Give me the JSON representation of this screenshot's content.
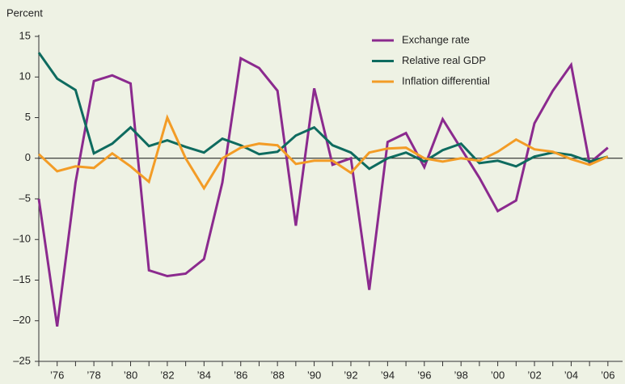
{
  "chart_data": {
    "type": "line",
    "y_label": "Percent",
    "x": [
      1975,
      1976,
      1977,
      1978,
      1979,
      1980,
      1981,
      1982,
      1983,
      1984,
      1985,
      1986,
      1987,
      1988,
      1989,
      1990,
      1991,
      1992,
      1993,
      1994,
      1995,
      1996,
      1997,
      1998,
      1999,
      2000,
      2001,
      2002,
      2003,
      2004,
      2005,
      2006
    ],
    "series": [
      {
        "name": "Exchange rate",
        "color": "#8b2a8e",
        "values": [
          -5,
          -20.7,
          -3,
          9.5,
          10.2,
          9.2,
          -13.8,
          -14.5,
          -14.2,
          -12.4,
          -3,
          12.3,
          11.1,
          8.3,
          -8.3,
          8.6,
          -0.8,
          0,
          -16.2,
          2,
          3.1,
          -1.1,
          4.8,
          1.2,
          -2.4,
          -6.5,
          -5.2,
          4.3,
          8.3,
          11.5,
          -0.6,
          1.3
        ]
      },
      {
        "name": "Relative real GDP",
        "color": "#0e6b5f",
        "values": [
          13,
          9.8,
          8.4,
          0.6,
          1.8,
          3.8,
          1.5,
          2.2,
          1.4,
          0.7,
          2.4,
          1.6,
          0.5,
          0.8,
          2.8,
          3.8,
          1.6,
          0.7,
          -1.3,
          0,
          0.7,
          -0.4,
          1,
          1.8,
          -0.6,
          -0.3,
          -1,
          0.2,
          0.7,
          0.4,
          -0.4,
          0.2
        ]
      },
      {
        "name": "Inflation differential",
        "color": "#f39c26",
        "values": [
          0.5,
          -1.6,
          -1,
          -1.2,
          0.6,
          -1,
          -2.9,
          5,
          0,
          -3.7,
          0,
          1.3,
          1.8,
          1.6,
          -0.7,
          -0.3,
          -0.3,
          -1.8,
          0.7,
          1.2,
          1.3,
          0,
          -0.4,
          0,
          -0.3,
          0.8,
          2.3,
          1.1,
          0.8,
          -0.1,
          -0.8,
          0.2
        ]
      }
    ],
    "xlim": [
      1975,
      2006.8
    ],
    "xticks": [
      {
        "value": 1976,
        "label": "’76"
      },
      {
        "value": 1978,
        "label": "’78"
      },
      {
        "value": 1980,
        "label": "’80"
      },
      {
        "value": 1982,
        "label": "’82"
      },
      {
        "value": 1984,
        "label": "’84"
      },
      {
        "value": 1986,
        "label": "’86"
      },
      {
        "value": 1988,
        "label": "’88"
      },
      {
        "value": 1990,
        "label": "’90"
      },
      {
        "value": 1992,
        "label": "’92"
      },
      {
        "value": 1994,
        "label": "’94"
      },
      {
        "value": 1996,
        "label": "’96"
      },
      {
        "value": 1998,
        "label": "’98"
      },
      {
        "value": 2000,
        "label": "’00"
      },
      {
        "value": 2002,
        "label": "’02"
      },
      {
        "value": 2004,
        "label": "’04"
      },
      {
        "value": 2006,
        "label": "’06"
      }
    ],
    "x_minor_ticks": [
      1975,
      1977,
      1979,
      1981,
      1983,
      1985,
      1987,
      1989,
      1991,
      1993,
      1995,
      1997,
      1999,
      2001,
      2003,
      2005
    ],
    "ylim": [
      -25,
      15
    ],
    "yticks": [
      {
        "value": -25,
        "label": "–25"
      },
      {
        "value": -20,
        "label": "–20"
      },
      {
        "value": -15,
        "label": "–15"
      },
      {
        "value": -10,
        "label": "–10"
      },
      {
        "value": -5,
        "label": "–5"
      },
      0,
      5,
      10,
      15
    ],
    "legend": "top-right"
  }
}
